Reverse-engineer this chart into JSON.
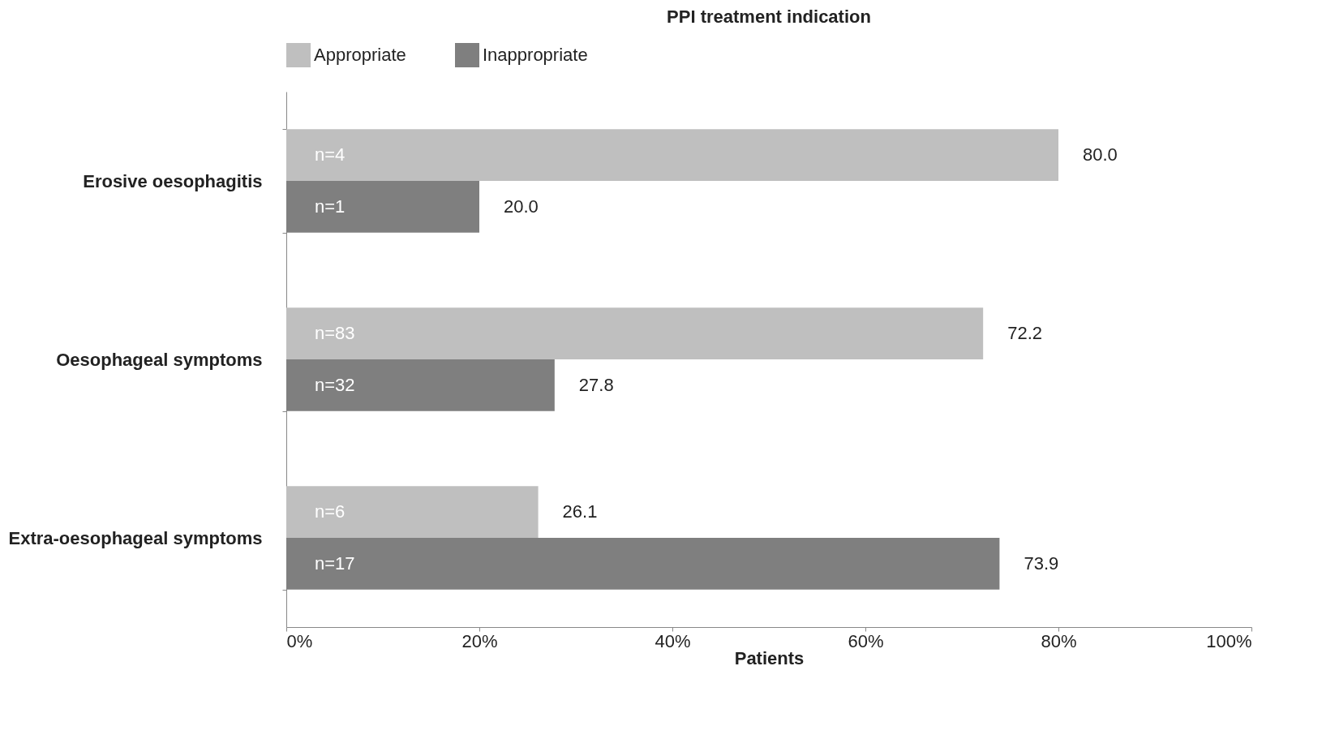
{
  "chart_data": {
    "type": "bar",
    "orientation": "horizontal",
    "title": "PPI treatment indication",
    "xlabel": "Patients",
    "categories": [
      "Erosive oesophagitis",
      "Oesophageal symptoms",
      "Extra-oesophageal symptoms"
    ],
    "series": [
      {
        "name": "Appropriate",
        "color": "#bfbfbf",
        "values": [
          80.0,
          72.2,
          26.1
        ],
        "value_labels": [
          "80.0",
          "72.2",
          "26.1"
        ]
      },
      {
        "name": "Inappropriate",
        "color": "#7f7f7f",
        "values": [
          20.0,
          27.8,
          73.9
        ],
        "value_labels": [
          "20.0",
          "27.8",
          "73.9"
        ]
      }
    ],
    "xlim": [
      0,
      100
    ],
    "xticks": [
      {
        "value": 0,
        "label": "0%"
      },
      {
        "value": 20,
        "label": "20%"
      },
      {
        "value": 40,
        "label": "40%"
      },
      {
        "value": 60,
        "label": "60%"
      },
      {
        "value": 80,
        "label": "80%"
      },
      {
        "value": 100,
        "label": "100%"
      }
    ],
    "annotations": [
      "n=4",
      "n=83",
      "n=6",
      "n=1",
      "n=32",
      "n=17"
    ],
    "legend": "top",
    "grid": false
  }
}
